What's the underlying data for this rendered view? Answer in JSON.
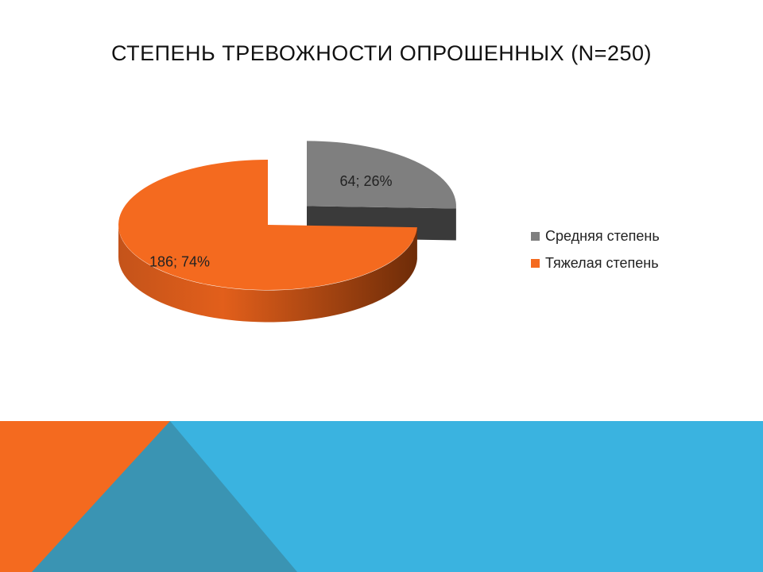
{
  "slide": {
    "title": "СТЕПЕНЬ ТРЕВОЖНОСТИ ОПРОШЕННЫХ (N=250)"
  },
  "colors": {
    "orange": "#F46A1F",
    "orange_dark": "#8F3A0E",
    "gray": "#7F7F7F",
    "gray_dark": "#3A3A3A",
    "blue": "#3AB3E0",
    "steel": "#3A94B3"
  },
  "chart_data": {
    "type": "pie",
    "title": "",
    "slices": [
      {
        "name": "Средняя степень",
        "value": 64,
        "percent": 26,
        "label": "64; 26%",
        "color": "#7F7F7F",
        "side_color": "#3A3A3A",
        "exploded": true
      },
      {
        "name": "Тяжелая степень",
        "value": 186,
        "percent": 74,
        "label": "186; 74%",
        "color": "#F46A1F",
        "side_color": "#8F3A0E",
        "exploded": false
      }
    ],
    "legend": {
      "position": "right",
      "items": [
        "Средняя степень",
        "Тяжелая степень"
      ]
    }
  }
}
